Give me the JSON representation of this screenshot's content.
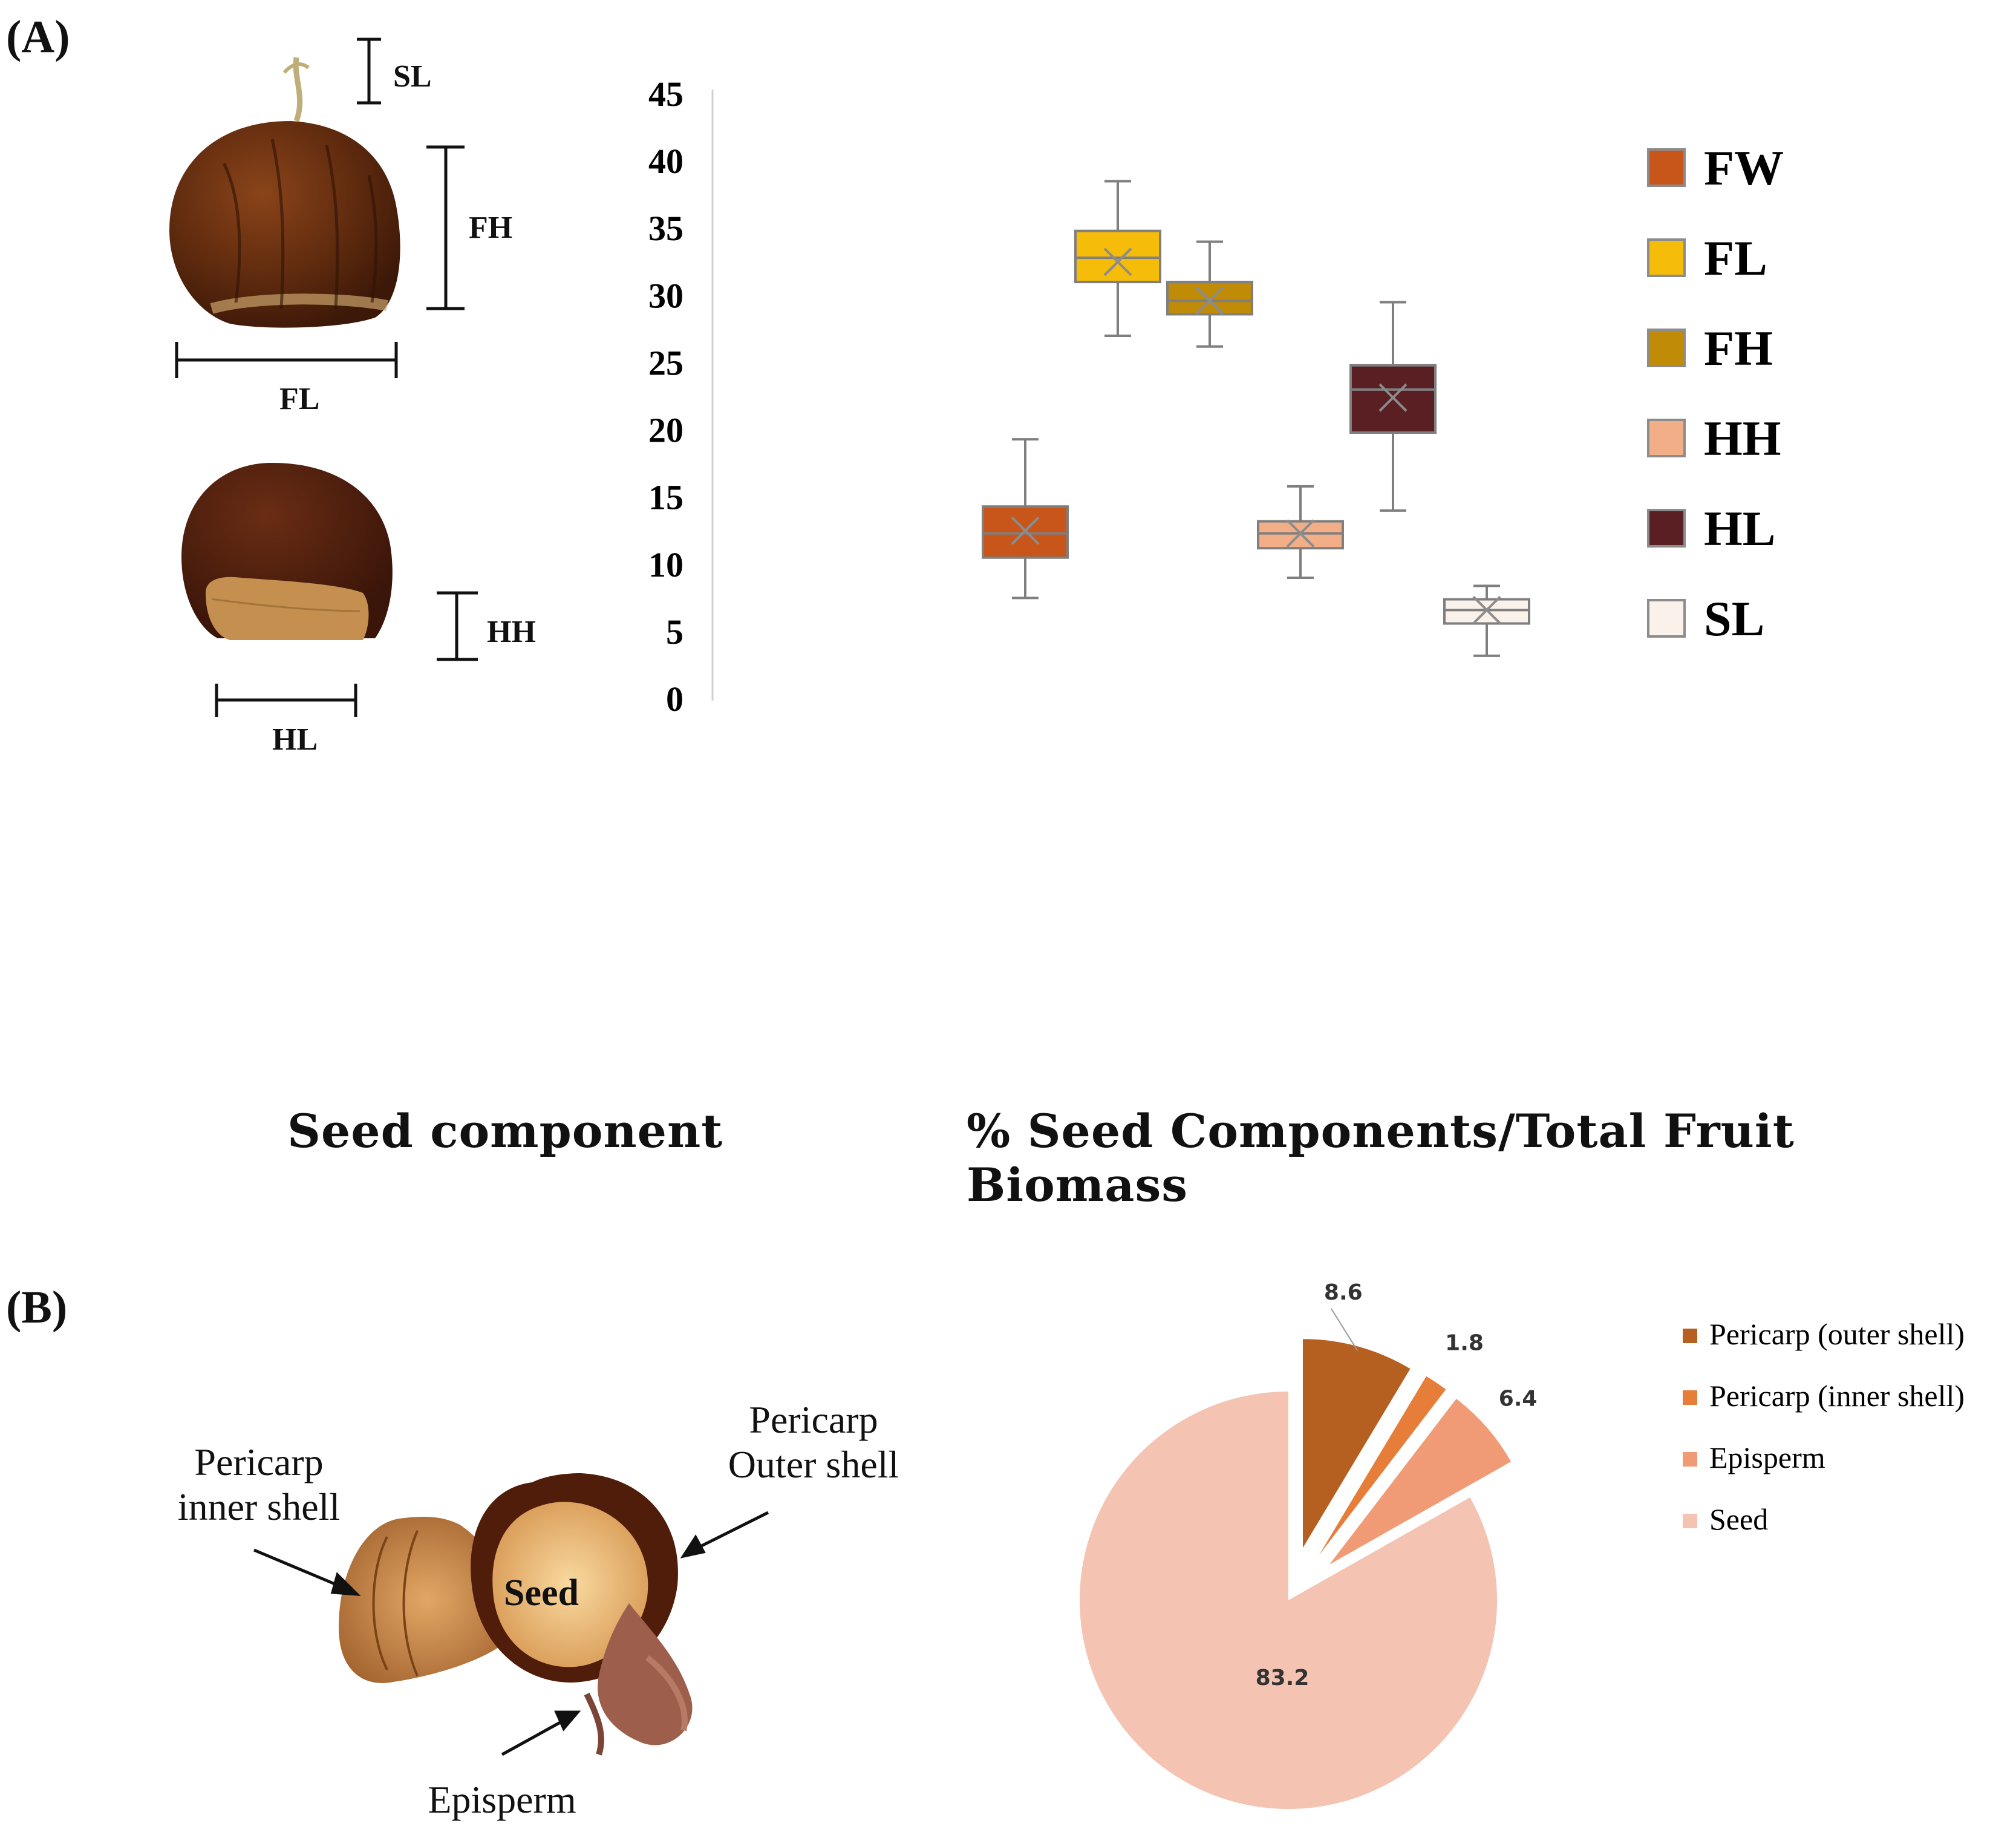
{
  "panel_a": {
    "label": "(A)",
    "dimension_labels": {
      "sl": "SL",
      "fh": "FH",
      "fl": "FL",
      "hh": "HH",
      "hl": "HL"
    }
  },
  "panel_b": {
    "label": "(B)",
    "left_heading": "Seed component",
    "right_heading": "% Seed Components/Total Fruit Biomass",
    "callouts": {
      "inner_shell": "Pericarp\ninner shell",
      "outer_shell": "Pericarp\nOuter shell",
      "seed": "Seed",
      "episperm": "Episperm"
    }
  },
  "chart_data": [
    {
      "type": "box",
      "title": "",
      "xlabel": "",
      "ylabel": "",
      "ylim": [
        0,
        45
      ],
      "yticks": [
        0,
        5,
        10,
        15,
        20,
        25,
        30,
        35,
        40,
        45
      ],
      "legend_position": "right",
      "series": [
        {
          "name": "FW",
          "color": "#C8561A",
          "min": 7.5,
          "q1": 10.5,
          "median": 12.3,
          "q3": 14.3,
          "max": 19.3,
          "mean": 12.5
        },
        {
          "name": "FL",
          "color": "#F5BC0A",
          "min": 27.0,
          "q1": 31.0,
          "median": 32.8,
          "q3": 34.8,
          "max": 38.5,
          "mean": 32.5
        },
        {
          "name": "FH",
          "color": "#C08B07",
          "min": 26.2,
          "q1": 28.6,
          "median": 29.6,
          "q3": 31.0,
          "max": 34.0,
          "mean": 29.6
        },
        {
          "name": "HH",
          "color": "#F2AE86",
          "min": 9.0,
          "q1": 11.2,
          "median": 12.3,
          "q3": 13.2,
          "max": 15.8,
          "mean": 12.3
        },
        {
          "name": "HL",
          "color": "#5A1F23",
          "min": 14.0,
          "q1": 19.8,
          "median": 23.0,
          "q3": 24.8,
          "max": 29.5,
          "mean": 22.4
        },
        {
          "name": "SL",
          "color": "#FBF1EB",
          "min": 3.2,
          "q1": 5.6,
          "median": 6.6,
          "q3": 7.4,
          "max": 8.4,
          "mean": 6.6
        }
      ]
    },
    {
      "type": "pie",
      "title": "% Seed Components/Total Fruit Biomass",
      "legend_position": "right",
      "slices": [
        {
          "label": "Pericarp (outer shell)",
          "value": 8.6,
          "value_text": "8.6",
          "color": "#B55F21"
        },
        {
          "label": "Pericarp (inner shell)",
          "value": 1.8,
          "value_text": "1.8",
          "color": "#E67E3A"
        },
        {
          "label": "Episperm",
          "value": 6.4,
          "value_text": "6.4",
          "color": "#F19B76"
        },
        {
          "label": "Seed",
          "value": 83.2,
          "value_text": "83.2",
          "color": "#F4C3B2"
        }
      ]
    }
  ]
}
